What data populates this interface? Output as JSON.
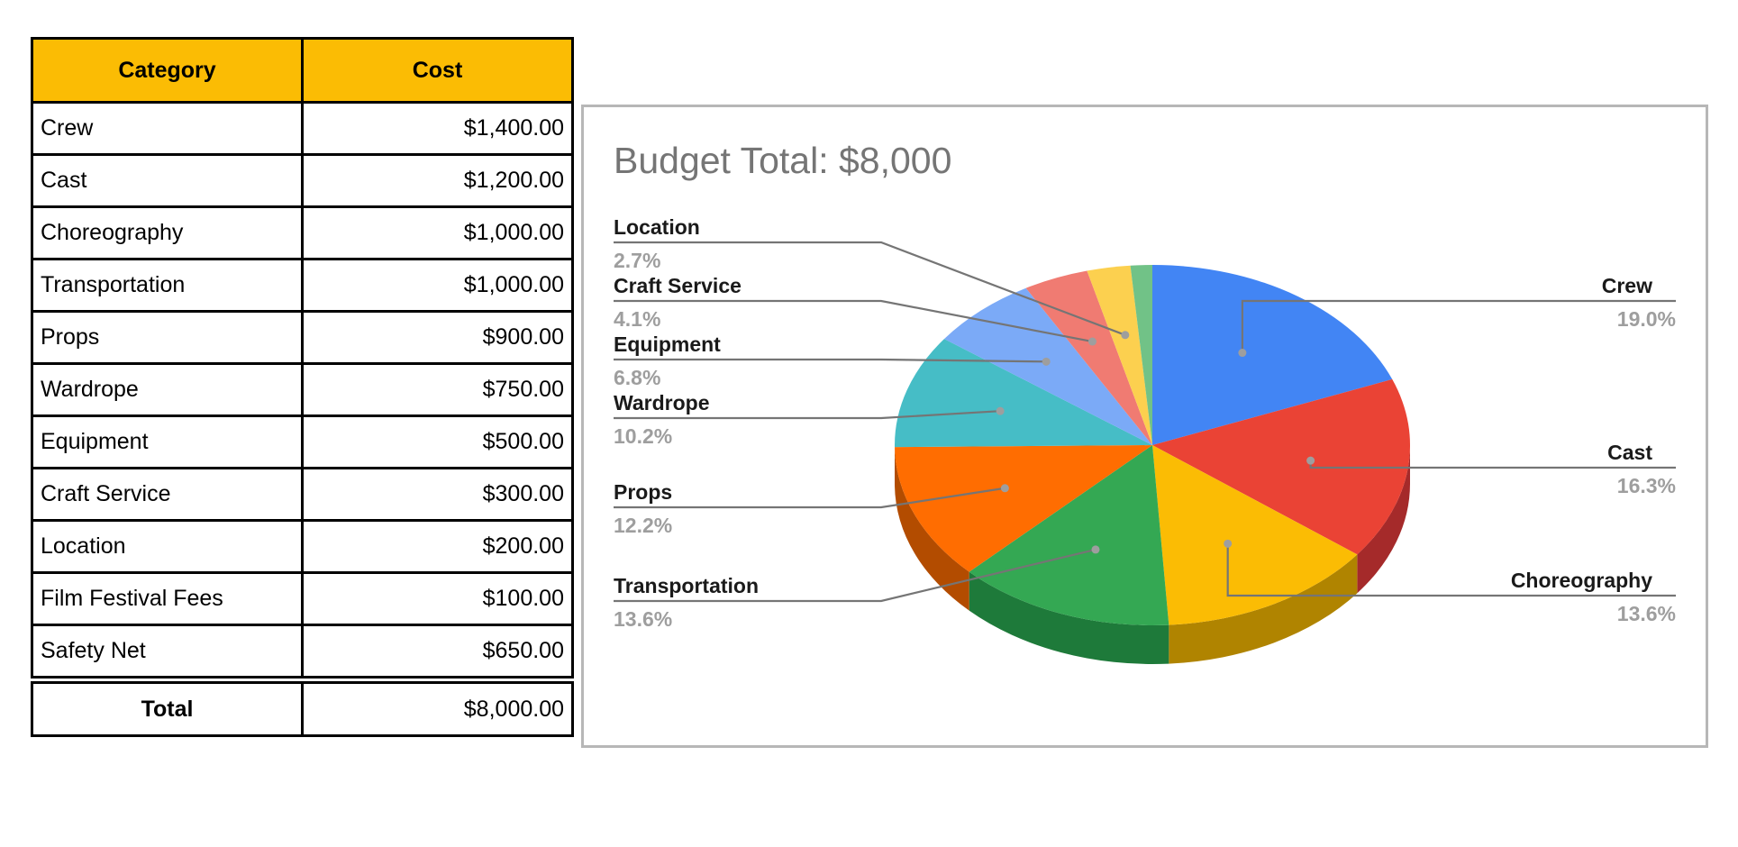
{
  "table": {
    "headers": {
      "category": "Category",
      "cost": "Cost"
    },
    "header_bg": "#FBBC04",
    "rows": [
      {
        "category": "Crew",
        "cost": "$1,400.00"
      },
      {
        "category": "Cast",
        "cost": "$1,200.00"
      },
      {
        "category": "Choreography",
        "cost": "$1,000.00"
      },
      {
        "category": "Transportation",
        "cost": "$1,000.00"
      },
      {
        "category": "Props",
        "cost": "$900.00"
      },
      {
        "category": "Wardrope",
        "cost": "$750.00"
      },
      {
        "category": "Equipment",
        "cost": "$500.00"
      },
      {
        "category": "Craft Service",
        "cost": "$300.00"
      },
      {
        "category": "Location",
        "cost": "$200.00"
      },
      {
        "category": "Film Festival Fees",
        "cost": "$100.00"
      },
      {
        "category": "Safety Net",
        "cost": "$650.00"
      }
    ],
    "total": {
      "label": "Total",
      "cost": "$8,000.00"
    }
  },
  "chart_data": {
    "type": "pie",
    "style": "3d",
    "title": "Budget Total: $8,000",
    "slices": [
      {
        "name": "Crew",
        "value": 1400,
        "pct_label": "19.0%",
        "color": "#4285F4",
        "side_color": "#3367D6",
        "label_side": "right"
      },
      {
        "name": "Cast",
        "value": 1200,
        "pct_label": "16.3%",
        "color": "#EA4335",
        "side_color": "#A52A2A",
        "label_side": "right"
      },
      {
        "name": "Choreography",
        "value": 1000,
        "pct_label": "13.6%",
        "color": "#FBBC04",
        "side_color": "#B08400",
        "label_side": "right"
      },
      {
        "name": "Transportation",
        "value": 1000,
        "pct_label": "13.6%",
        "color": "#34A853",
        "side_color": "#1E7A3A",
        "label_side": "left"
      },
      {
        "name": "Props",
        "value": 900,
        "pct_label": "12.2%",
        "color": "#FF6D01",
        "side_color": "#B34C00",
        "label_side": "left"
      },
      {
        "name": "Wardrope",
        "value": 750,
        "pct_label": "10.2%",
        "color": "#46BDC6",
        "side_color": "#2E8A91",
        "label_side": "left"
      },
      {
        "name": "Equipment",
        "value": 500,
        "pct_label": "6.8%",
        "color": "#7BAAF7",
        "side_color": "#5A82C2",
        "label_side": "left"
      },
      {
        "name": "Craft Service",
        "value": 300,
        "pct_label": "4.1%",
        "color": "#F07B72",
        "side_color": "#B55A53",
        "label_side": "left"
      },
      {
        "name": "Location",
        "value": 200,
        "pct_label": "2.7%",
        "color": "#FCD04F",
        "side_color": "#B89A3A",
        "label_side": "left"
      },
      {
        "name": "Film Festival Fees",
        "value": 100,
        "pct_label": "",
        "color": "#71C287",
        "side_color": "#4E8F60",
        "label_side": "none"
      }
    ]
  }
}
